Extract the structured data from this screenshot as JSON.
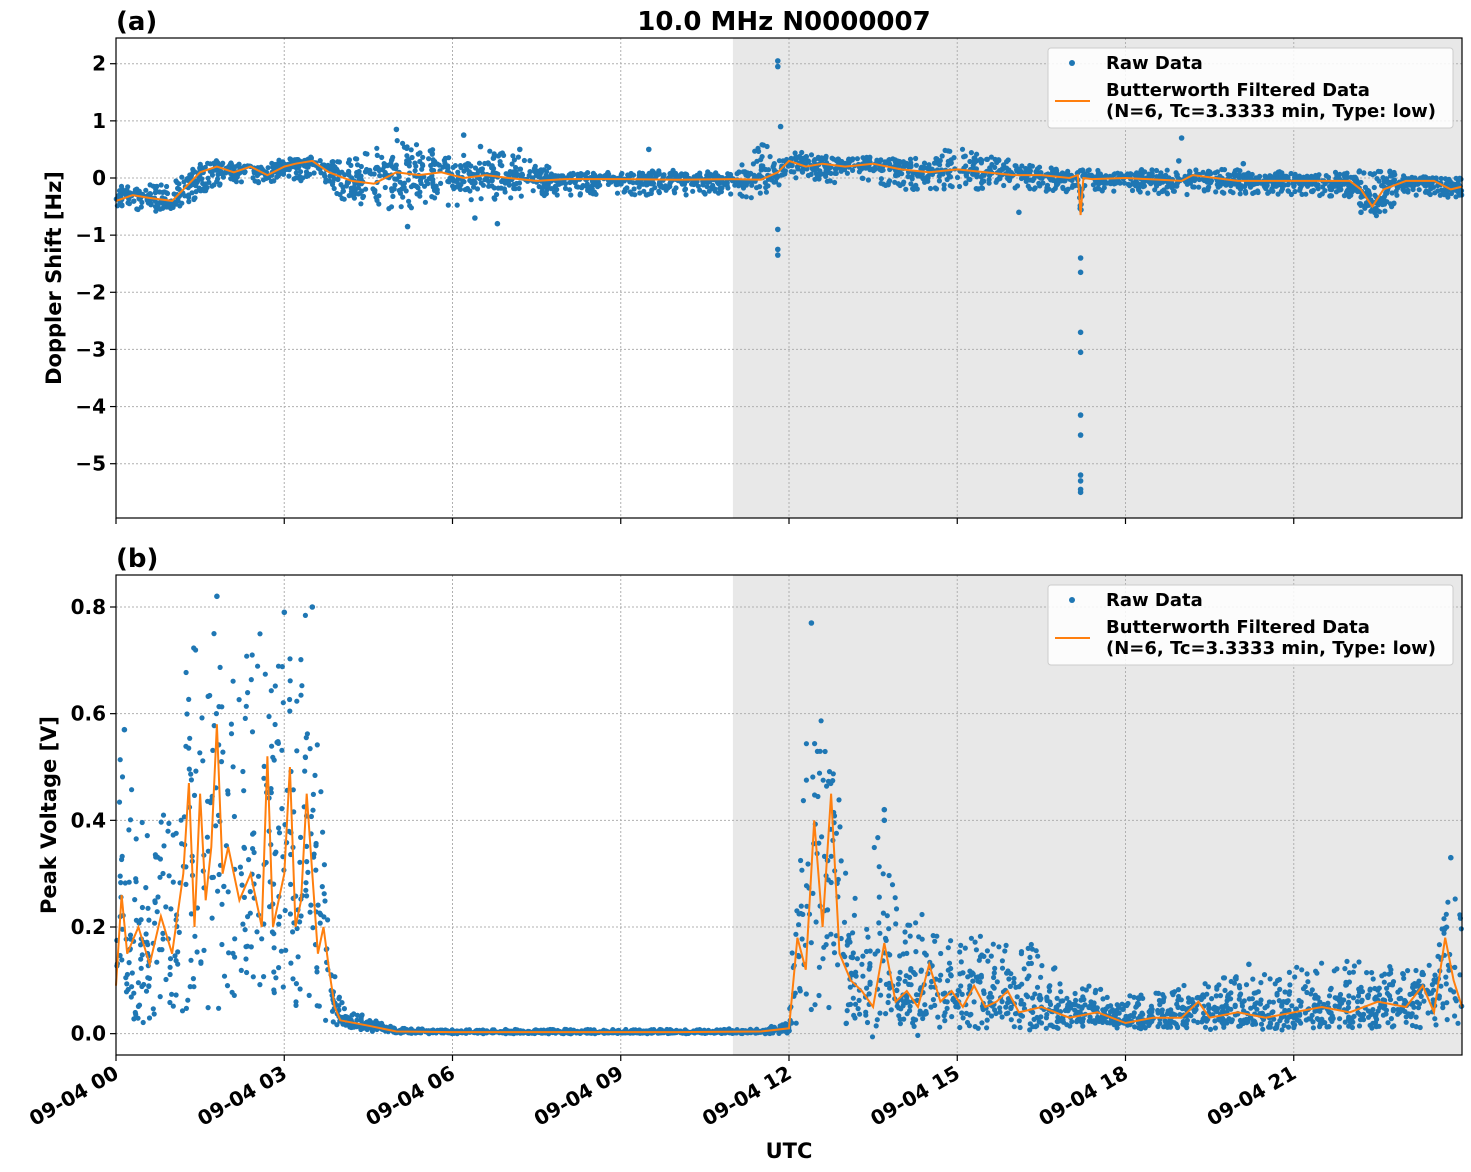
{
  "figure": {
    "title": "10.0 MHz N0000007",
    "xlabel": "UTC",
    "colors": {
      "raw": "#1f77b4",
      "filtered": "#ff7f0e",
      "shade": "#e8e8e8"
    }
  },
  "chart_data": [
    {
      "panel": "(a)",
      "type": "scatter",
      "ylabel": "Doppler Shift [Hz]",
      "xlim": [
        0,
        24
      ],
      "ylim": [
        -5.95,
        2.45
      ],
      "shaded_x_range": [
        11,
        24
      ],
      "grid": true,
      "legend_position": "top-right",
      "y_ticks": [
        {
          "value": 2,
          "label": "2"
        },
        {
          "value": 1,
          "label": "1"
        },
        {
          "value": 0,
          "label": "0"
        },
        {
          "value": -1,
          "label": "−1"
        },
        {
          "value": -2,
          "label": "−2"
        },
        {
          "value": -3,
          "label": "−3"
        },
        {
          "value": -4,
          "label": "−4"
        },
        {
          "value": -5,
          "label": "−5"
        }
      ],
      "legend": [
        "Raw Data",
        "Butterworth Filtered Data",
        "(N=6, Tc=3.3333 min, Type: low)"
      ],
      "series": [
        {
          "name": "Raw Data",
          "kind": "scatter-band",
          "band_x": [
            0,
            0.5,
            1,
            1.5,
            2,
            2.5,
            3,
            3.5,
            4,
            4.5,
            5,
            5.5,
            6,
            6.5,
            7,
            8,
            9,
            10,
            11,
            11.5,
            12,
            12.5,
            13,
            14,
            15,
            16,
            17,
            18,
            19,
            20,
            21,
            22,
            22.5,
            23,
            24
          ],
          "band_lo": [
            -0.6,
            -0.55,
            -0.65,
            -0.3,
            -0.05,
            -0.15,
            0.0,
            -0.1,
            -0.35,
            -0.55,
            -0.6,
            -0.55,
            -0.5,
            -0.45,
            -0.35,
            -0.3,
            -0.3,
            -0.3,
            -0.3,
            -0.4,
            0.0,
            -0.05,
            -0.1,
            -0.2,
            -0.2,
            -0.2,
            -0.25,
            -0.25,
            -0.3,
            -0.3,
            -0.3,
            -0.35,
            -0.7,
            -0.3,
            -0.35
          ],
          "band_hi": [
            -0.15,
            -0.1,
            -0.1,
            0.25,
            0.3,
            0.25,
            0.35,
            0.3,
            0.3,
            0.5,
            0.7,
            0.55,
            0.5,
            0.5,
            0.45,
            0.1,
            0.1,
            0.15,
            0.1,
            0.6,
            0.45,
            0.45,
            0.4,
            0.35,
            0.55,
            0.3,
            0.15,
            0.15,
            0.15,
            0.15,
            0.1,
            0.1,
            0.2,
            0.05,
            0.0
          ],
          "outliers": [
            [
              5.0,
              0.85
            ],
            [
              5.2,
              -0.85
            ],
            [
              6.2,
              0.75
            ],
            [
              6.4,
              -0.7
            ],
            [
              6.5,
              0.55
            ],
            [
              6.8,
              -0.8
            ],
            [
              7.2,
              0.5
            ],
            [
              9.5,
              0.5
            ],
            [
              11.8,
              2.05
            ],
            [
              11.8,
              1.95
            ],
            [
              11.8,
              -0.9
            ],
            [
              11.8,
              -1.25
            ],
            [
              11.8,
              -1.35
            ],
            [
              11.85,
              0.9
            ],
            [
              16.1,
              -0.6
            ],
            [
              17.2,
              -1.4
            ],
            [
              17.2,
              -1.65
            ],
            [
              17.2,
              -2.7
            ],
            [
              17.2,
              -3.05
            ],
            [
              17.2,
              -4.15
            ],
            [
              17.2,
              -4.5
            ],
            [
              17.2,
              -5.2
            ],
            [
              17.2,
              -5.3
            ],
            [
              17.2,
              -5.45
            ],
            [
              17.2,
              -5.5
            ],
            [
              19.0,
              0.7
            ],
            [
              18.95,
              0.3
            ],
            [
              20.1,
              0.25
            ],
            [
              22.2,
              -0.6
            ]
          ]
        },
        {
          "name": "Butterworth Filtered Data",
          "kind": "line",
          "x": [
            0,
            0.3,
            0.6,
            1.0,
            1.2,
            1.5,
            1.8,
            2.1,
            2.4,
            2.7,
            3.0,
            3.2,
            3.5,
            3.8,
            4.2,
            4.6,
            5.0,
            5.4,
            5.8,
            6.2,
            6.6,
            7.0,
            7.5,
            8.0,
            9.0,
            10.0,
            11.0,
            11.5,
            11.8,
            12.0,
            12.3,
            12.6,
            13.0,
            13.5,
            14.0,
            14.5,
            15.0,
            15.5,
            16.0,
            16.5,
            17.0,
            17.15,
            17.2,
            17.25,
            17.4,
            18.0,
            19.0,
            19.2,
            20.0,
            21.0,
            22.0,
            22.2,
            22.4,
            22.6,
            23.0,
            23.5,
            23.8,
            24.0
          ],
          "y": [
            -0.4,
            -0.3,
            -0.35,
            -0.4,
            -0.2,
            0.1,
            0.2,
            0.1,
            0.2,
            0.05,
            0.2,
            0.25,
            0.3,
            0.1,
            -0.05,
            -0.1,
            0.1,
            0.05,
            0.1,
            0.0,
            0.05,
            0.0,
            -0.05,
            -0.02,
            -0.02,
            -0.03,
            -0.02,
            -0.03,
            0.1,
            0.3,
            0.2,
            0.25,
            0.2,
            0.25,
            0.15,
            0.1,
            0.15,
            0.1,
            0.05,
            0.05,
            0.0,
            0.05,
            -0.65,
            0.0,
            -0.02,
            0.0,
            -0.05,
            0.05,
            -0.05,
            -0.05,
            -0.05,
            -0.2,
            -0.5,
            -0.2,
            -0.05,
            -0.05,
            -0.2,
            -0.15
          ]
        }
      ]
    },
    {
      "panel": "(b)",
      "type": "scatter",
      "ylabel": "Peak Voltage [V]",
      "xlim": [
        0,
        24
      ],
      "ylim": [
        -0.04,
        0.86
      ],
      "shaded_x_range": [
        11,
        24
      ],
      "grid": true,
      "legend_position": "top-right",
      "y_ticks": [
        {
          "value": 0.8,
          "label": "0.8"
        },
        {
          "value": 0.6,
          "label": "0.6"
        },
        {
          "value": 0.4,
          "label": "0.4"
        },
        {
          "value": 0.2,
          "label": "0.2"
        },
        {
          "value": 0.0,
          "label": "0.0"
        }
      ],
      "x_ticks": [
        {
          "value": 0,
          "label": "09-04 00"
        },
        {
          "value": 3,
          "label": "09-04 03"
        },
        {
          "value": 6,
          "label": "09-04 06"
        },
        {
          "value": 9,
          "label": "09-04 09"
        },
        {
          "value": 12,
          "label": "09-04 12"
        },
        {
          "value": 15,
          "label": "09-04 15"
        },
        {
          "value": 18,
          "label": "09-04 18"
        },
        {
          "value": 21,
          "label": "09-04 21"
        }
      ],
      "legend": [
        "Raw Data",
        "Butterworth Filtered Data",
        "(N=6, Tc=3.3333 min, Type: low)"
      ],
      "series": [
        {
          "name": "Raw Data",
          "kind": "scatter-band",
          "band_x": [
            0,
            0.1,
            0.3,
            0.6,
            0.9,
            1.2,
            1.4,
            1.6,
            1.8,
            2.0,
            2.3,
            2.6,
            2.9,
            3.2,
            3.4,
            3.6,
            3.75,
            3.85,
            4.0,
            4.5,
            5.0,
            6.0,
            8.0,
            10.0,
            11.5,
            12.0,
            12.1,
            12.3,
            12.5,
            12.7,
            13.0,
            13.3,
            13.6,
            14.0,
            14.5,
            15.0,
            15.5,
            16.0,
            16.5,
            17.0,
            18.0,
            19.0,
            20.0,
            21.0,
            22.0,
            22.5,
            23.0,
            23.5,
            23.8,
            24.0
          ],
          "band_lo": [
            0.02,
            0.05,
            0.02,
            0.02,
            0.02,
            0.03,
            0.05,
            0.05,
            0.04,
            0.06,
            0.05,
            0.06,
            0.08,
            0.06,
            0.05,
            0.05,
            0.02,
            0.01,
            0.01,
            0.005,
            0.0,
            0.0,
            0.0,
            0.0,
            0.0,
            0.0,
            0.01,
            0.02,
            0.02,
            0.02,
            0.01,
            0.01,
            0.01,
            0.01,
            0.01,
            0.01,
            0.01,
            0.01,
            0.01,
            0.01,
            0.01,
            0.01,
            0.01,
            0.01,
            0.01,
            0.01,
            0.01,
            0.01,
            0.02,
            0.02
          ],
          "band_hi": [
            0.45,
            0.56,
            0.45,
            0.4,
            0.42,
            0.7,
            0.8,
            0.7,
            0.8,
            0.65,
            0.72,
            0.8,
            0.7,
            0.72,
            0.8,
            0.55,
            0.35,
            0.15,
            0.06,
            0.03,
            0.01,
            0.008,
            0.008,
            0.008,
            0.01,
            0.02,
            0.25,
            0.55,
            0.77,
            0.6,
            0.35,
            0.2,
            0.42,
            0.22,
            0.24,
            0.2,
            0.18,
            0.18,
            0.17,
            0.1,
            0.07,
            0.09,
            0.11,
            0.13,
            0.14,
            0.14,
            0.12,
            0.13,
            0.33,
            0.2
          ],
          "outliers": [
            [
              0.15,
              0.57
            ],
            [
              1.8,
              0.82
            ],
            [
              3.0,
              0.79
            ],
            [
              3.5,
              0.8
            ],
            [
              12.4,
              0.77
            ],
            [
              13.7,
              0.42
            ],
            [
              13.7,
              0.4
            ],
            [
              20.2,
              0.13
            ],
            [
              23.8,
              0.33
            ]
          ]
        },
        {
          "name": "Butterworth Filtered Data",
          "kind": "line",
          "x": [
            0,
            0.1,
            0.2,
            0.4,
            0.6,
            0.8,
            1.0,
            1.2,
            1.3,
            1.4,
            1.5,
            1.6,
            1.7,
            1.8,
            1.9,
            2.0,
            2.2,
            2.4,
            2.6,
            2.7,
            2.8,
            3.0,
            3.1,
            3.2,
            3.3,
            3.4,
            3.5,
            3.6,
            3.7,
            3.8,
            3.9,
            4.0,
            4.5,
            5.0,
            6.0,
            8.0,
            10.0,
            11.5,
            12.0,
            12.15,
            12.3,
            12.45,
            12.6,
            12.75,
            12.9,
            13.1,
            13.3,
            13.5,
            13.7,
            13.9,
            14.1,
            14.3,
            14.5,
            14.7,
            14.9,
            15.1,
            15.3,
            15.5,
            15.7,
            15.9,
            16.1,
            16.5,
            17.0,
            17.5,
            18.0,
            18.5,
            19.0,
            19.3,
            19.5,
            20.0,
            20.5,
            21.0,
            21.5,
            22.0,
            22.5,
            23.0,
            23.3,
            23.5,
            23.7,
            23.85,
            24.0
          ],
          "y": [
            0.09,
            0.26,
            0.15,
            0.2,
            0.13,
            0.22,
            0.15,
            0.3,
            0.47,
            0.2,
            0.45,
            0.25,
            0.35,
            0.58,
            0.3,
            0.35,
            0.25,
            0.3,
            0.2,
            0.52,
            0.2,
            0.3,
            0.5,
            0.2,
            0.25,
            0.45,
            0.3,
            0.15,
            0.2,
            0.12,
            0.05,
            0.025,
            0.015,
            0.004,
            0.003,
            0.003,
            0.003,
            0.004,
            0.01,
            0.18,
            0.12,
            0.4,
            0.2,
            0.45,
            0.15,
            0.1,
            0.08,
            0.05,
            0.17,
            0.06,
            0.08,
            0.05,
            0.13,
            0.06,
            0.08,
            0.05,
            0.09,
            0.05,
            0.06,
            0.08,
            0.04,
            0.05,
            0.03,
            0.04,
            0.02,
            0.03,
            0.03,
            0.06,
            0.03,
            0.04,
            0.03,
            0.04,
            0.05,
            0.04,
            0.06,
            0.05,
            0.09,
            0.04,
            0.18,
            0.1,
            0.05
          ]
        }
      ]
    }
  ]
}
